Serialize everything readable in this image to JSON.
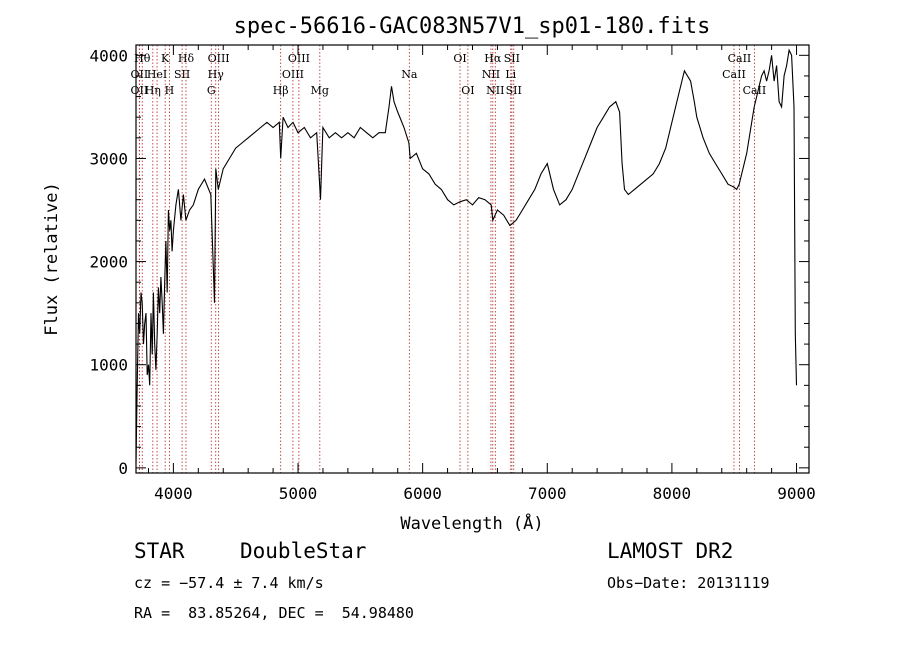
{
  "chart_data": {
    "type": "line",
    "title": "spec-56616-GAC083N57V1_sp01-180.fits",
    "xlabel": "Wavelength (Å)",
    "ylabel": "Flux (relative)",
    "xlim": [
      3700,
      9100
    ],
    "ylim": [
      -50,
      4100
    ],
    "xticks": [
      4000,
      5000,
      6000,
      7000,
      8000,
      9000
    ],
    "yticks": [
      0,
      1000,
      2000,
      3000,
      4000
    ],
    "series": [
      {
        "x": [
          3700,
          3710,
          3720,
          3730,
          3740,
          3750,
          3760,
          3770,
          3780,
          3790,
          3800,
          3810,
          3820,
          3830,
          3840,
          3850,
          3860,
          3870,
          3880,
          3890,
          3900,
          3910,
          3920,
          3930,
          3940,
          3950,
          3960,
          3970,
          3980,
          3990,
          4000,
          4020,
          4040,
          4060,
          4080,
          4100,
          4130,
          4160,
          4200,
          4250,
          4300,
          4330,
          4340,
          4360,
          4400,
          4450,
          4500,
          4550,
          4600,
          4650,
          4700,
          4750,
          4800,
          4850,
          4861,
          4880,
          4920,
          4960,
          5000,
          5050,
          5100,
          5150,
          5180,
          5200,
          5250,
          5300,
          5350,
          5400,
          5450,
          5500,
          5550,
          5600,
          5650,
          5700,
          5730,
          5750,
          5770,
          5800,
          5850,
          5890,
          5900,
          5950,
          6000,
          6050,
          6100,
          6150,
          6200,
          6250,
          6300,
          6350,
          6400,
          6450,
          6500,
          6550,
          6563,
          6600,
          6650,
          6700,
          6750,
          6800,
          6850,
          6900,
          6950,
          7000,
          7050,
          7100,
          7150,
          7200,
          7250,
          7300,
          7350,
          7400,
          7450,
          7500,
          7550,
          7580,
          7600,
          7620,
          7650,
          7700,
          7750,
          7800,
          7850,
          7900,
          7950,
          8000,
          8050,
          8100,
          8150,
          8180,
          8200,
          8250,
          8300,
          8350,
          8400,
          8450,
          8500,
          8520,
          8540,
          8560,
          8580,
          8600,
          8620,
          8640,
          8660,
          8680,
          8700,
          8720,
          8740,
          8760,
          8780,
          8800,
          8820,
          8840,
          8860,
          8880,
          8900,
          8920,
          8940,
          8960,
          8980,
          8990,
          9000
        ],
        "y": [
          50,
          800,
          1500,
          1300,
          1700,
          1600,
          1200,
          1400,
          1500,
          900,
          1000,
          800,
          1500,
          1100,
          1700,
          1200,
          950,
          1300,
          1750,
          1500,
          1850,
          1600,
          1300,
          1800,
          2200,
          1700,
          2500,
          2300,
          2400,
          2100,
          2300,
          2550,
          2700,
          2400,
          2650,
          2400,
          2500,
          2550,
          2700,
          2800,
          2650,
          1600,
          2900,
          2700,
          2900,
          3000,
          3100,
          3150,
          3200,
          3250,
          3300,
          3350,
          3300,
          3350,
          3000,
          3400,
          3300,
          3350,
          3250,
          3300,
          3200,
          3250,
          2600,
          3300,
          3200,
          3250,
          3200,
          3250,
          3200,
          3300,
          3250,
          3200,
          3250,
          3250,
          3500,
          3700,
          3550,
          3450,
          3300,
          3150,
          3000,
          3050,
          2900,
          2850,
          2750,
          2700,
          2600,
          2550,
          2580,
          2600,
          2550,
          2620,
          2600,
          2550,
          2400,
          2500,
          2450,
          2350,
          2400,
          2500,
          2600,
          2700,
          2850,
          2950,
          2700,
          2550,
          2600,
          2700,
          2850,
          3000,
          3150,
          3300,
          3400,
          3500,
          3550,
          3450,
          2950,
          2700,
          2650,
          2700,
          2750,
          2800,
          2850,
          2950,
          3100,
          3350,
          3600,
          3850,
          3750,
          3550,
          3400,
          3200,
          3050,
          2950,
          2850,
          2750,
          2720,
          2700,
          2750,
          2850,
          2950,
          3050,
          3200,
          3350,
          3500,
          3600,
          3700,
          3800,
          3850,
          3750,
          3850,
          4000,
          3750,
          3900,
          3550,
          3500,
          3800,
          3900,
          4050,
          4000,
          3500,
          1300,
          800
        ]
      }
    ],
    "spectral_lines": [
      {
        "wavelength": 3750,
        "label": "Hθ",
        "row": 0
      },
      {
        "wavelength": 3727,
        "label": "OII",
        "row": 1
      },
      {
        "wavelength": 3727,
        "label": "OII",
        "row": 2
      },
      {
        "wavelength": 3835,
        "label": "Hη",
        "row": 2
      },
      {
        "wavelength": 3869,
        "label": "HeI",
        "row": 1
      },
      {
        "wavelength": 3934,
        "label": "K",
        "row": 0
      },
      {
        "wavelength": 3968,
        "label": "H",
        "row": 2
      },
      {
        "wavelength": 4070,
        "label": "SII",
        "row": 1
      },
      {
        "wavelength": 4101,
        "label": "Hδ",
        "row": 0
      },
      {
        "wavelength": 4304,
        "label": "G",
        "row": 2
      },
      {
        "wavelength": 4340,
        "label": "Hγ",
        "row": 1
      },
      {
        "wavelength": 4363,
        "label": "OIII",
        "row": 0
      },
      {
        "wavelength": 4861,
        "label": "Hβ",
        "row": 2
      },
      {
        "wavelength": 4959,
        "label": "OIII",
        "row": 1
      },
      {
        "wavelength": 5007,
        "label": "OIII",
        "row": 0
      },
      {
        "wavelength": 5175,
        "label": "Mg",
        "row": 2
      },
      {
        "wavelength": 5893,
        "label": "Na",
        "row": 1
      },
      {
        "wavelength": 6300,
        "label": "OI",
        "row": 0
      },
      {
        "wavelength": 6363,
        "label": "OI",
        "row": 2
      },
      {
        "wavelength": 6548,
        "label": "NII",
        "row": 1
      },
      {
        "wavelength": 6563,
        "label": "Hα",
        "row": 0
      },
      {
        "wavelength": 6583,
        "label": "NII",
        "row": 2
      },
      {
        "wavelength": 6707,
        "label": "Li",
        "row": 1
      },
      {
        "wavelength": 6716,
        "label": "SII",
        "row": 0
      },
      {
        "wavelength": 6731,
        "label": "SII",
        "row": 2
      },
      {
        "wavelength": 8498,
        "label": "CaII",
        "row": 1
      },
      {
        "wavelength": 8542,
        "label": "CaII",
        "row": 0
      },
      {
        "wavelength": 8662,
        "label": "CaII",
        "row": 2
      }
    ],
    "line_color": "#000000",
    "marker_color": "#b22222"
  },
  "info": {
    "class": "STAR",
    "subclass": "DoubleStar",
    "survey": "LAMOST DR2",
    "cz": "cz = −57.4 ± 7.4 km/s",
    "obs_date": "Obs−Date: 20131119",
    "coords": "RA =  83.85264, DEC =  54.98480"
  }
}
